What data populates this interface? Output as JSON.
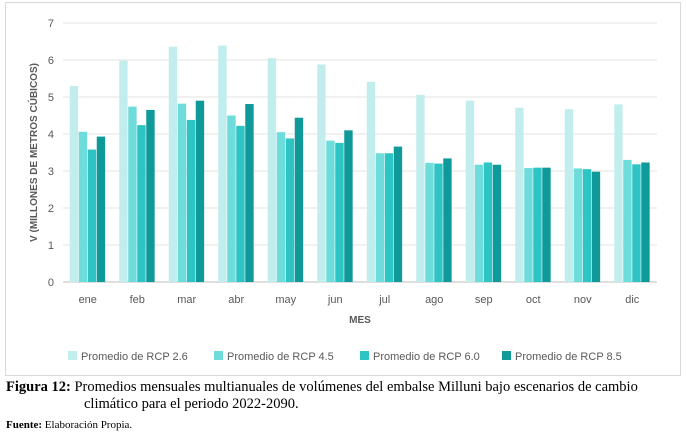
{
  "chart_data": {
    "type": "bar",
    "xlabel": "MES",
    "ylabel": "V (MILLONES DE METROS CÚBICOS)",
    "ylim": [
      0,
      7
    ],
    "yticks": [
      "0",
      "1",
      "2",
      "3",
      "4",
      "5",
      "6",
      "7"
    ],
    "grid": true,
    "legend_position": "bottom",
    "categories": [
      "ene",
      "feb",
      "mar",
      "abr",
      "may",
      "jun",
      "jul",
      "ago",
      "sep",
      "oct",
      "nov",
      "dic"
    ],
    "series": [
      {
        "name": "Promedio de RCP 2.6",
        "color": "#c2eded",
        "values": [
          5.3,
          5.98,
          6.36,
          6.39,
          6.05,
          5.88,
          5.41,
          5.06,
          4.9,
          4.71,
          4.67,
          4.8
        ]
      },
      {
        "name": "Promedio de RCP 4.5",
        "color": "#6fdcdc",
        "values": [
          4.06,
          4.74,
          4.82,
          4.5,
          4.05,
          3.82,
          3.48,
          3.22,
          3.17,
          3.08,
          3.07,
          3.3
        ]
      },
      {
        "name": "Promedio de RCP 6.0",
        "color": "#2ec4c4",
        "values": [
          3.58,
          4.24,
          4.38,
          4.22,
          3.88,
          3.76,
          3.48,
          3.2,
          3.23,
          3.09,
          3.05,
          3.18
        ]
      },
      {
        "name": "Promedio de RCP 8.5",
        "color": "#0f9999",
        "values": [
          3.93,
          4.65,
          4.9,
          4.81,
          4.44,
          4.1,
          3.66,
          3.34,
          3.17,
          3.09,
          2.98,
          3.23
        ]
      }
    ]
  },
  "caption": {
    "label": "Figura 12:",
    "line1": "Promedios mensuales multianuales de volúmenes del embalse Milluni bajo escenarios de cambio",
    "line2": "climático para el periodo 2022-2090."
  },
  "source": {
    "label": "Fuente:",
    "text": "Elaboración Propia."
  }
}
